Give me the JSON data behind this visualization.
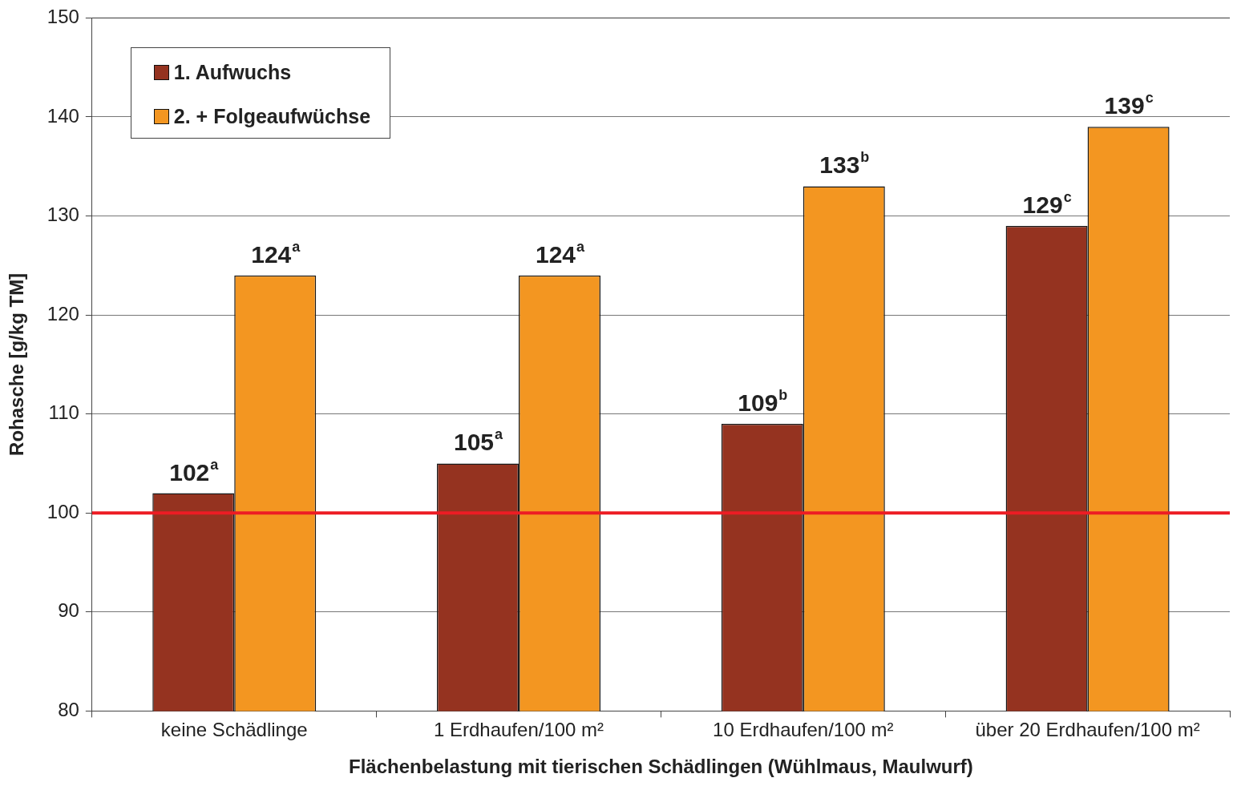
{
  "chart_data": {
    "type": "bar",
    "xlabel": "Flächenbelastung mit tierischen Schädlingen (Wühlmaus, Maulwurf)",
    "ylabel": "Rohasche [g/kg TM]",
    "categories": [
      "keine Schädlinge",
      "1 Erdhaufen/100 m²",
      "10 Erdhaufen/100 m²",
      "über 20 Erdhaufen/100 m²"
    ],
    "series": [
      {
        "name": "1. Aufwuchs",
        "color": "#953320",
        "values": [
          102,
          105,
          109,
          129
        ],
        "value_labels": [
          "102$^{a}$",
          "105$^{a}$",
          "109$^{b}$",
          "129$^{c}$"
        ]
      },
      {
        "name": "2. + Folgeaufwüchse",
        "color": "#f39621",
        "values": [
          124,
          124,
          133,
          139
        ],
        "value_labels": [
          "124$^{a}$",
          "124$^{a}$",
          "133$^{b}$",
          "139$^{c}$"
        ]
      }
    ],
    "ylim": [
      80,
      150
    ],
    "yticks": [
      80,
      90,
      100,
      110,
      120,
      130,
      140,
      150
    ],
    "grid": "y",
    "legend": "top left",
    "ref_lines": [
      {
        "axis": "y",
        "value": 100,
        "color": "#ed1c24"
      }
    ]
  }
}
